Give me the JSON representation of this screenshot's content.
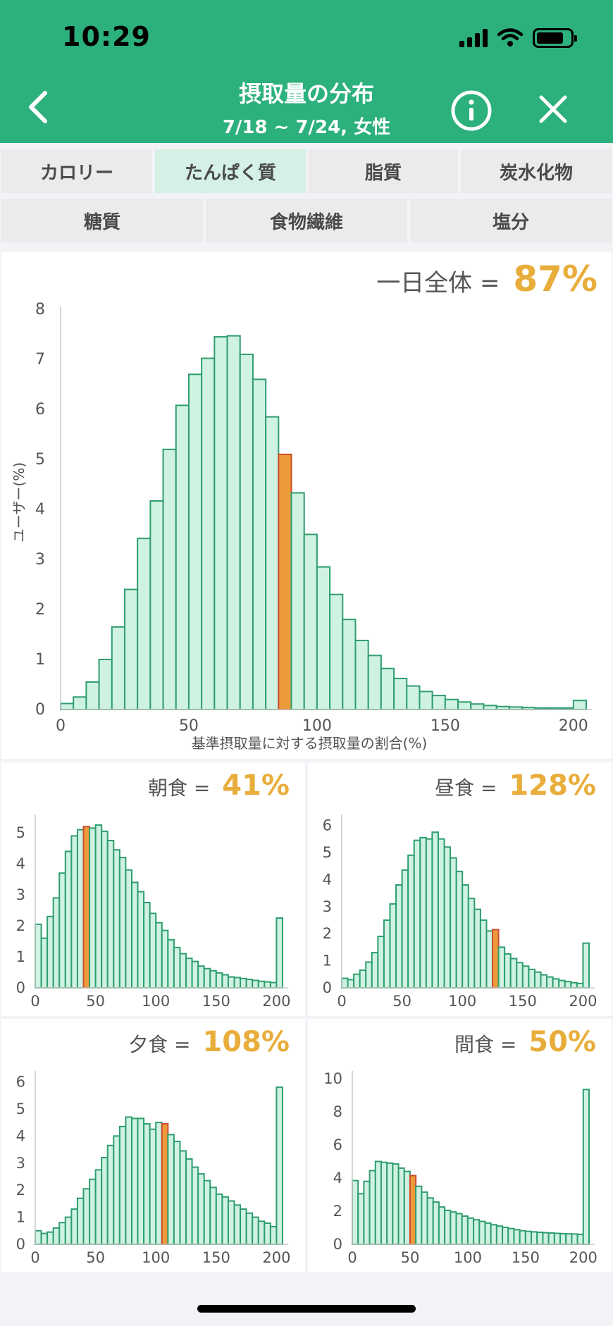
{
  "status": {
    "time": "10:29"
  },
  "header": {
    "title": "摂取量の分布",
    "subtitle": "7/18 ~ 7/24, 女性"
  },
  "tabs_row1": [
    {
      "label": "カロリー",
      "active": false
    },
    {
      "label": "たんぱく質",
      "active": true
    },
    {
      "label": "脂質",
      "active": false
    },
    {
      "label": "炭水化物",
      "active": false
    }
  ],
  "tabs_row2": [
    {
      "label": "糖質",
      "active": false
    },
    {
      "label": "食物繊維",
      "active": false
    },
    {
      "label": "塩分",
      "active": false
    }
  ],
  "colors": {
    "bar_fill": "#cff2e2",
    "bar_stroke": "#2e9e6f",
    "highlight_fill": "#ed9b3a",
    "highlight_stroke": "#cc4b2f",
    "value": "#e8ad3b"
  },
  "chart_data": [
    {
      "type": "bar",
      "label": "一日全体",
      "value_text": "87%",
      "xlabel": "基準摂取量に対する摂取量の割合(%)",
      "ylabel": "ユーザー(%)",
      "xlim": [
        0,
        205
      ],
      "ylim": [
        0,
        8
      ],
      "xticks": [
        0,
        50,
        100,
        150,
        200
      ],
      "yticks": [
        0,
        1,
        2,
        3,
        4,
        5,
        6,
        7,
        8
      ],
      "bin_width": 5,
      "highlight_bin": 17,
      "values": [
        0.12,
        0.25,
        0.55,
        1.0,
        1.65,
        2.4,
        3.42,
        4.17,
        5.2,
        6.08,
        6.7,
        7.02,
        7.45,
        7.47,
        7.1,
        6.6,
        5.85,
        5.1,
        4.33,
        3.5,
        2.85,
        2.3,
        1.8,
        1.38,
        1.08,
        0.82,
        0.62,
        0.47,
        0.36,
        0.28,
        0.2,
        0.15,
        0.11,
        0.08,
        0.06,
        0.05,
        0.04,
        0.03,
        0.03,
        0.03,
        0.18
      ]
    },
    {
      "type": "bar",
      "label": "朝食",
      "value_text": "41%",
      "xlim": [
        0,
        205
      ],
      "ylim": [
        0,
        5.5
      ],
      "xticks": [
        0,
        50,
        100,
        150,
        200
      ],
      "yticks": [
        0,
        1,
        2,
        3,
        4,
        5
      ],
      "bin_width": 5,
      "highlight_bin": 8,
      "values": [
        2.05,
        1.6,
        2.3,
        2.9,
        3.7,
        4.4,
        4.9,
        5.1,
        5.2,
        5.15,
        5.25,
        5.05,
        4.75,
        4.45,
        4.2,
        3.8,
        3.4,
        3.1,
        2.75,
        2.4,
        2.1,
        1.85,
        1.55,
        1.3,
        1.1,
        0.95,
        0.85,
        0.7,
        0.62,
        0.55,
        0.48,
        0.42,
        0.35,
        0.33,
        0.3,
        0.27,
        0.24,
        0.21,
        0.19,
        0.17,
        2.25
      ]
    },
    {
      "type": "bar",
      "label": "昼食",
      "value_text": "128%",
      "xlim": [
        0,
        205
      ],
      "ylim": [
        0,
        6.3
      ],
      "xticks": [
        0,
        50,
        100,
        150,
        200
      ],
      "yticks": [
        0,
        1,
        2,
        3,
        4,
        5,
        6
      ],
      "bin_width": 5,
      "highlight_bin": 25,
      "values": [
        0.35,
        0.3,
        0.5,
        0.65,
        0.95,
        1.3,
        1.9,
        2.5,
        3.1,
        3.8,
        4.35,
        4.9,
        5.45,
        5.55,
        5.5,
        5.75,
        5.5,
        5.2,
        4.8,
        4.3,
        3.8,
        3.3,
        2.9,
        2.5,
        2.1,
        2.15,
        1.5,
        1.25,
        1.08,
        0.93,
        0.8,
        0.68,
        0.58,
        0.48,
        0.4,
        0.33,
        0.27,
        0.23,
        0.19,
        0.16,
        1.65
      ]
    },
    {
      "type": "bar",
      "label": "夕食",
      "value_text": "108%",
      "xlim": [
        0,
        205
      ],
      "ylim": [
        0,
        6.3
      ],
      "xticks": [
        0,
        50,
        100,
        150,
        200
      ],
      "yticks": [
        0,
        1,
        2,
        3,
        4,
        5,
        6
      ],
      "bin_width": 5,
      "highlight_bin": 21,
      "values": [
        0.5,
        0.4,
        0.45,
        0.6,
        0.8,
        1.0,
        1.3,
        1.7,
        2.05,
        2.4,
        2.75,
        3.2,
        3.65,
        4.0,
        4.35,
        4.7,
        4.65,
        4.65,
        4.45,
        4.25,
        4.5,
        4.45,
        4.05,
        3.8,
        3.45,
        3.15,
        2.85,
        2.6,
        2.35,
        2.1,
        1.85,
        1.75,
        1.6,
        1.45,
        1.3,
        1.15,
        1.0,
        0.85,
        0.78,
        0.65,
        5.8
      ]
    },
    {
      "type": "bar",
      "label": "間食",
      "value_text": "50%",
      "xlim": [
        0,
        205
      ],
      "ylim": [
        0,
        10.3
      ],
      "xticks": [
        0,
        50,
        100,
        150,
        200
      ],
      "yticks": [
        0,
        2,
        4,
        6,
        8,
        10
      ],
      "bin_width": 5,
      "highlight_bin": 10,
      "values": [
        3.85,
        3.05,
        3.8,
        4.45,
        5.0,
        4.95,
        4.9,
        4.85,
        4.6,
        4.4,
        4.15,
        3.5,
        3.15,
        2.8,
        2.55,
        2.25,
        2.05,
        1.95,
        1.85,
        1.7,
        1.58,
        1.48,
        1.38,
        1.28,
        1.18,
        1.1,
        1.02,
        0.95,
        0.88,
        0.82,
        0.78,
        0.75,
        0.72,
        0.7,
        0.68,
        0.66,
        0.64,
        0.63,
        0.62,
        0.6,
        9.35
      ]
    }
  ]
}
